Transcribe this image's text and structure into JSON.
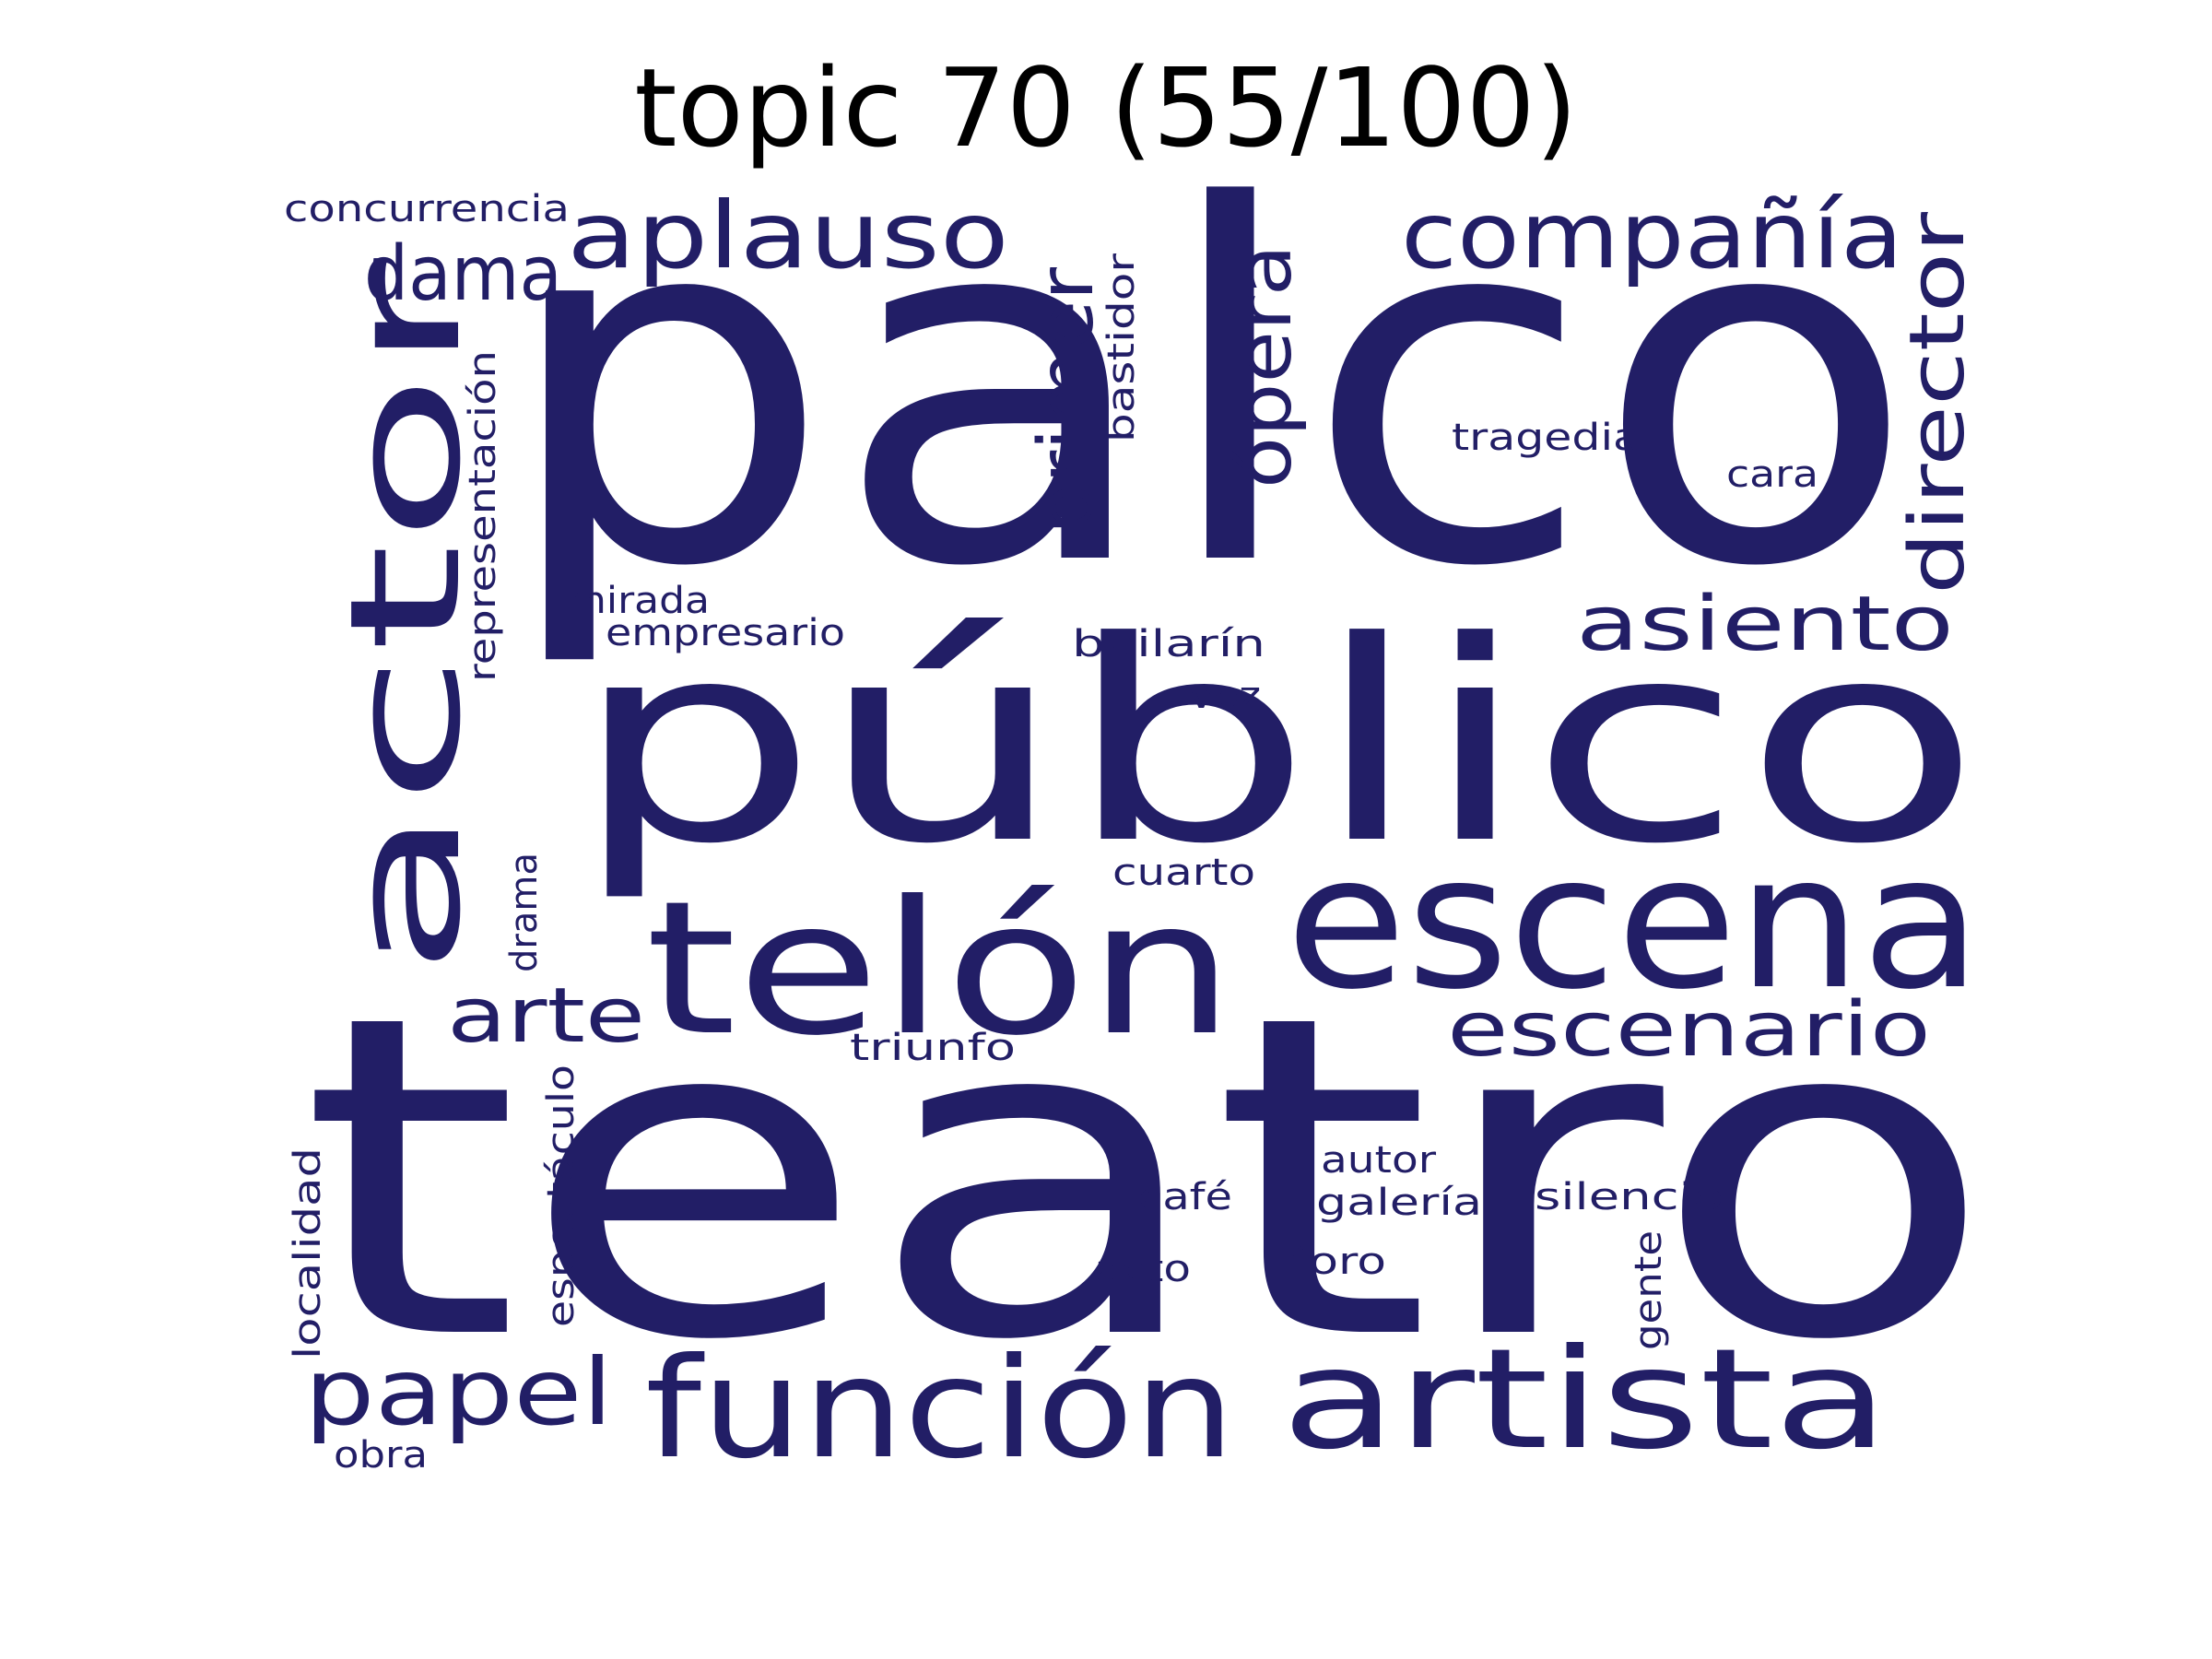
{
  "title": "topic 70 (55/100)",
  "word_color": "#221e66",
  "words": [
    "palco",
    "teatro",
    "público",
    "actor",
    "escena",
    "telón",
    "artista",
    "función",
    "compañía",
    "aplauso",
    "director",
    "escenario",
    "papel",
    "asiento",
    "arte",
    "dama",
    "primer",
    "ópera",
    "concurrencia",
    "bastidor",
    "representación",
    "tragedia",
    "cara",
    "mirada",
    "empresario",
    "bailarín",
    "voz",
    "drama",
    "cuarto",
    "triunfo",
    "espectáculo",
    "localidad",
    "autor",
    "café",
    "galería",
    "silencio",
    "foro",
    "acto",
    "gente",
    "obra"
  ]
}
